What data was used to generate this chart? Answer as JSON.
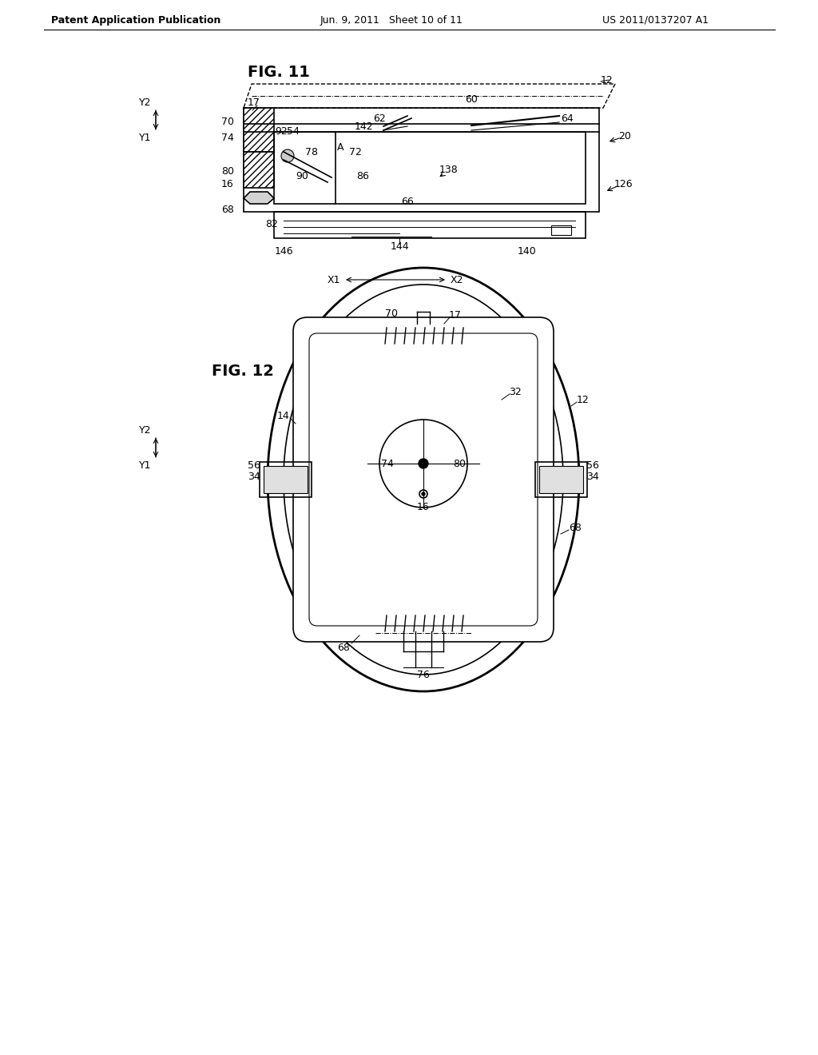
{
  "background_color": "#ffffff",
  "header_left": "Patent Application Publication",
  "header_mid": "Jun. 9, 2011   Sheet 10 of 11",
  "header_right": "US 2011/0137207 A1",
  "fig11_title": "FIG. 11",
  "fig12_title": "FIG. 12",
  "line_color": "#000000",
  "text_color": "#000000",
  "font_size_header": 9,
  "font_size_label": 9,
  "font_size_figtitle": 13
}
